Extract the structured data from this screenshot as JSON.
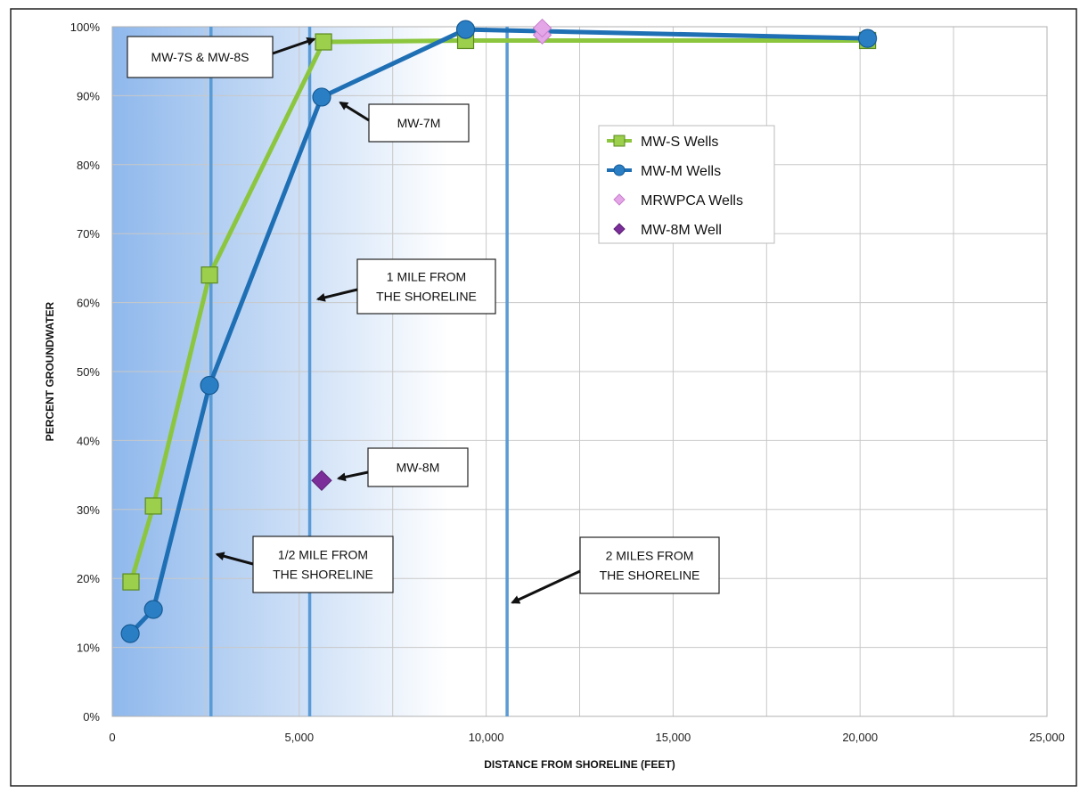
{
  "colors": {
    "ms_series": "#8cc63f",
    "ms_marker_fill": "#9ccf4c",
    "ms_marker_stroke": "#5a8a1e",
    "mm_series": "#1f6fb5",
    "mm_marker_fill": "#2a7fc4",
    "mrwpca_marker": "#e5a6e8",
    "mw8m_marker": "#7b2e9a",
    "boundary_line": "#5a9bd5",
    "shade_left": "#8fb8ec",
    "grid": "#c8c8c8"
  },
  "chart_data": {
    "type": "line",
    "xlabel": "DISTANCE FROM SHORELINE (FEET)",
    "ylabel": "PERCENT GROUNDWATER",
    "xlim": [
      0,
      25000
    ],
    "ylim": [
      0,
      100
    ],
    "x_ticks": [
      0,
      5000,
      10000,
      15000,
      20000,
      25000
    ],
    "x_tick_labels": [
      "0",
      "5,000",
      "10,000",
      "15,000",
      "20,000",
      "25,000"
    ],
    "y_ticks": [
      0,
      10,
      20,
      30,
      40,
      50,
      60,
      70,
      80,
      90,
      100
    ],
    "y_tick_labels": [
      "0%",
      "10%",
      "20%",
      "30%",
      "40%",
      "50%",
      "60%",
      "70%",
      "80%",
      "90%",
      "100%"
    ],
    "grid": true,
    "legend_placement": "upper-right-center",
    "series": [
      {
        "name": "MW-S Wells",
        "marker": "square",
        "points": [
          [
            500,
            19.5
          ],
          [
            1100,
            30.5
          ],
          [
            2600,
            64
          ],
          [
            5650,
            97.8
          ],
          [
            9450,
            98
          ],
          [
            20200,
            98
          ]
        ]
      },
      {
        "name": "MW-M Wells",
        "marker": "circle",
        "points": [
          [
            480,
            12
          ],
          [
            1100,
            15.5
          ],
          [
            2600,
            48
          ],
          [
            5600,
            89.8
          ],
          [
            9450,
            99.6
          ],
          [
            20200,
            98.3
          ]
        ]
      },
      {
        "name": "MRWPCA Wells",
        "marker": "diamond",
        "points": [
          [
            11500,
            98.8
          ],
          [
            11500,
            99.8
          ]
        ]
      },
      {
        "name": "MW-8M Well",
        "marker": "diamond",
        "points": [
          [
            5600,
            34.2
          ]
        ]
      }
    ],
    "reference_lines": [
      {
        "x": 2640
      },
      {
        "x": 5280
      },
      {
        "x": 10560
      }
    ],
    "annotations": [
      {
        "text_lines": [
          "MW-7S & MW-8S"
        ],
        "target": [
          5400,
          98.2
        ]
      },
      {
        "text_lines": [
          "MW-7M"
        ],
        "target": [
          6100,
          89
        ]
      },
      {
        "text_lines": [
          "1 MILE FROM",
          "THE SHORELINE"
        ],
        "target": [
          5500,
          60.5
        ]
      },
      {
        "text_lines": [
          "MW-8M"
        ],
        "target": [
          6050,
          34.5
        ]
      },
      {
        "text_lines": [
          "1/2 MILE FROM",
          "THE SHORELINE"
        ],
        "target": [
          2800,
          23.5
        ]
      },
      {
        "text_lines": [
          "2 MILES FROM",
          "THE SHORELINE"
        ],
        "target": [
          10700,
          16.5
        ]
      }
    ]
  }
}
